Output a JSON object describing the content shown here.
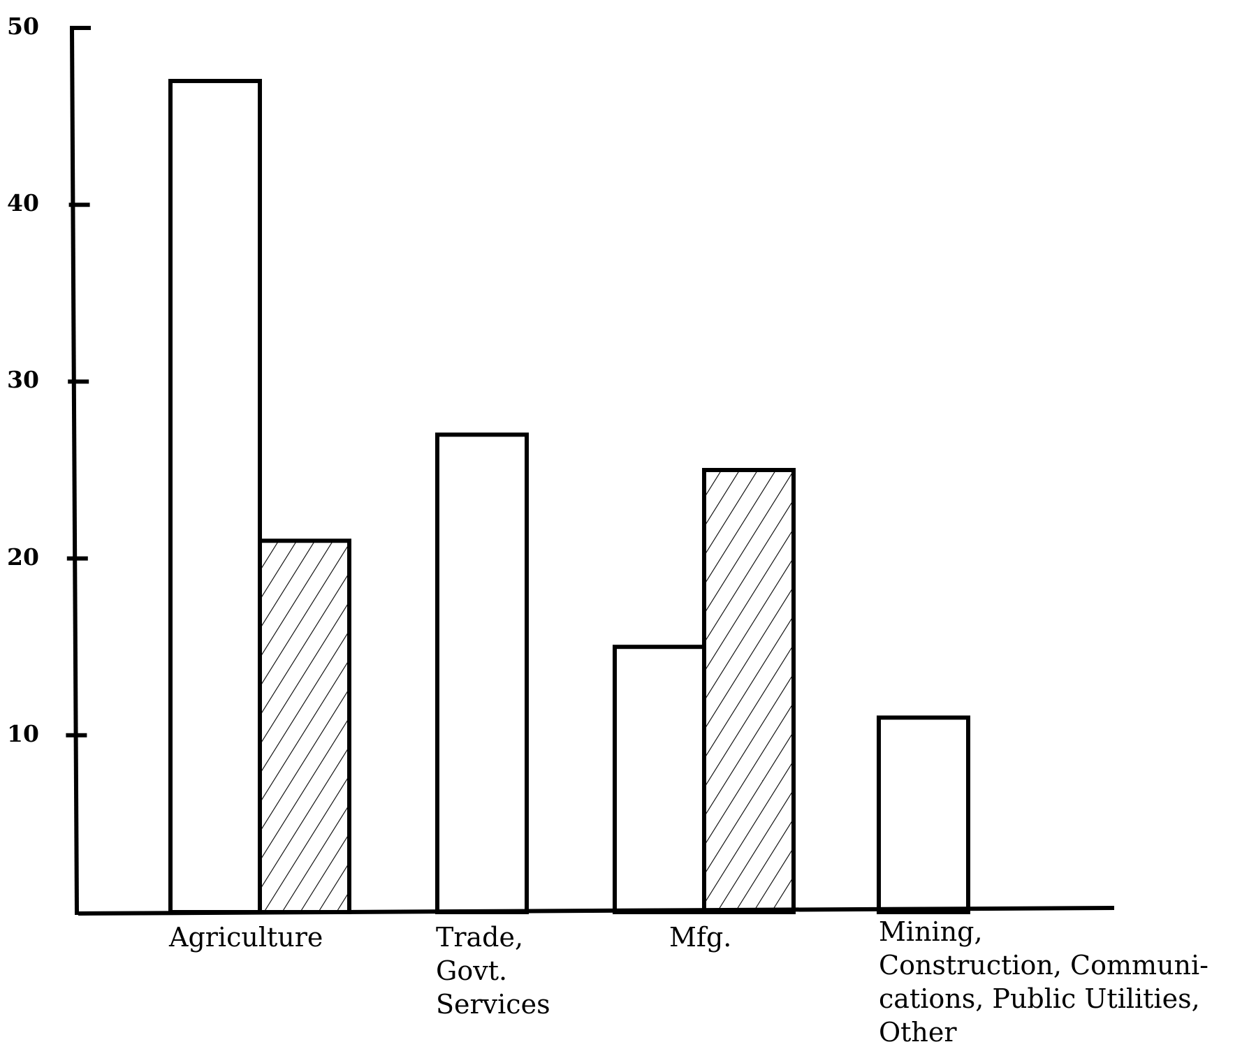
{
  "chart_data": {
    "type": "bar",
    "categories": [
      "Agriculture",
      "Trade,\nGovt.\nServices",
      "Mfg.",
      "Mining,\nConstruction, Communi-\ncations, Public Utilities,\nOther"
    ],
    "series": [
      {
        "values": [
          47,
          27,
          15,
          11
        ],
        "fill": "none"
      },
      {
        "values": [
          21,
          null,
          25,
          null
        ],
        "fill": "hatched"
      }
    ],
    "yticks": [
      10,
      20,
      30,
      40,
      50
    ],
    "ylim": [
      0,
      50
    ],
    "grid": false,
    "legend": "none",
    "colors": {
      "line": "#000000",
      "background": "#ffffff"
    }
  }
}
